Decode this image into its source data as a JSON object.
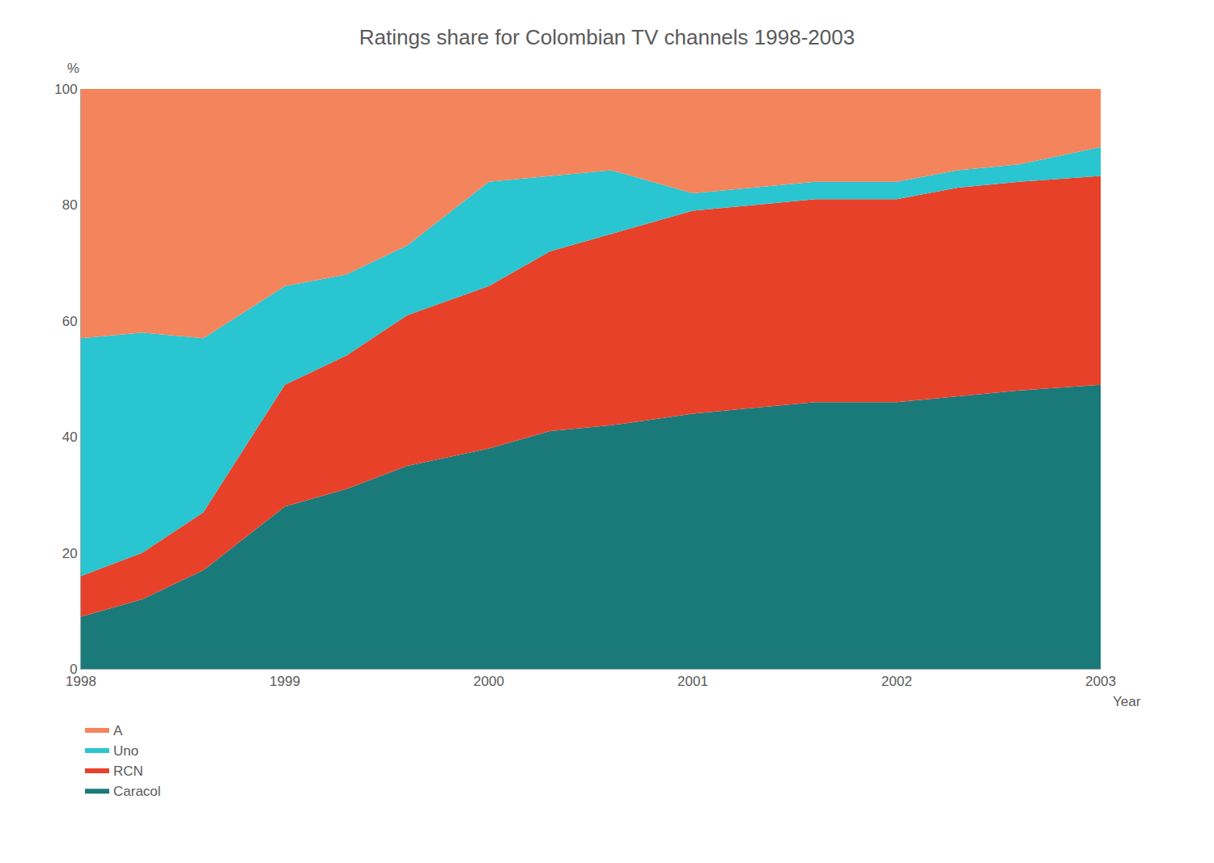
{
  "chart_data": {
    "type": "area",
    "title": "Ratings share for Colombian TV channels 1998-2003",
    "x_label": "Year",
    "y_label": "%",
    "x": [
      1998,
      1998.3,
      1998.6,
      1999,
      1999.3,
      1999.6,
      2000,
      2000.3,
      2000.6,
      2001,
      2001.3,
      2001.6,
      2002,
      2002.3,
      2002.6,
      2003
    ],
    "series": [
      {
        "name": "Caracol",
        "color": "#1a7a7a",
        "values": [
          9,
          12,
          17,
          28,
          31,
          35,
          38,
          41,
          42,
          44,
          45,
          46,
          46,
          47,
          48,
          49
        ]
      },
      {
        "name": "RCN",
        "color": "#e8412a",
        "values": [
          7,
          8,
          10,
          21,
          23,
          26,
          28,
          31,
          33,
          35,
          35,
          35,
          35,
          36,
          36,
          36
        ]
      },
      {
        "name": "Uno",
        "color": "#29c5d0",
        "values": [
          41,
          38,
          30,
          17,
          14,
          12,
          18,
          13,
          11,
          3,
          3,
          3,
          3,
          3,
          3,
          5
        ]
      },
      {
        "name": "A",
        "color": "#f4845c",
        "values": [
          43,
          42,
          43,
          34,
          32,
          27,
          16,
          15,
          14,
          18,
          17,
          16,
          16,
          14,
          13,
          10
        ]
      }
    ],
    "stacked": true,
    "xlim": [
      1998,
      2003
    ],
    "xticks": [
      1998,
      1999,
      2000,
      2001,
      2002,
      2003
    ],
    "ylim": [
      0,
      100
    ],
    "yticks": [
      0,
      20,
      40,
      60,
      80,
      100
    ],
    "grid": "x",
    "legend": "bottom"
  }
}
